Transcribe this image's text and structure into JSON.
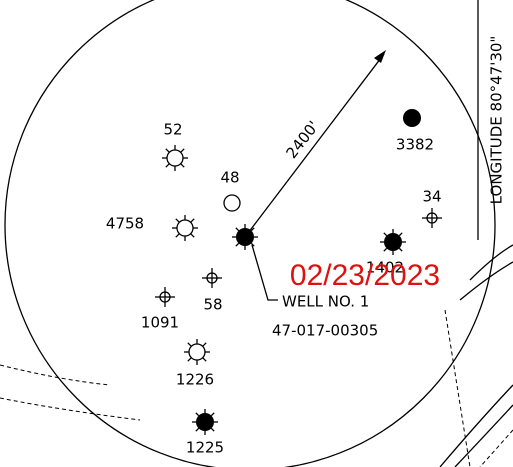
{
  "distance_label": "2400'",
  "longitude_label": "LONGITUDE 80°47'30\"",
  "date_stamp": "02/23/2023",
  "well": {
    "name": "WELL NO. 1",
    "api": "47-017-00305"
  },
  "offset_wells": [
    "52",
    "48",
    "4758",
    "3382",
    "34",
    "1402",
    "58",
    "1091",
    "1226",
    "1225"
  ]
}
